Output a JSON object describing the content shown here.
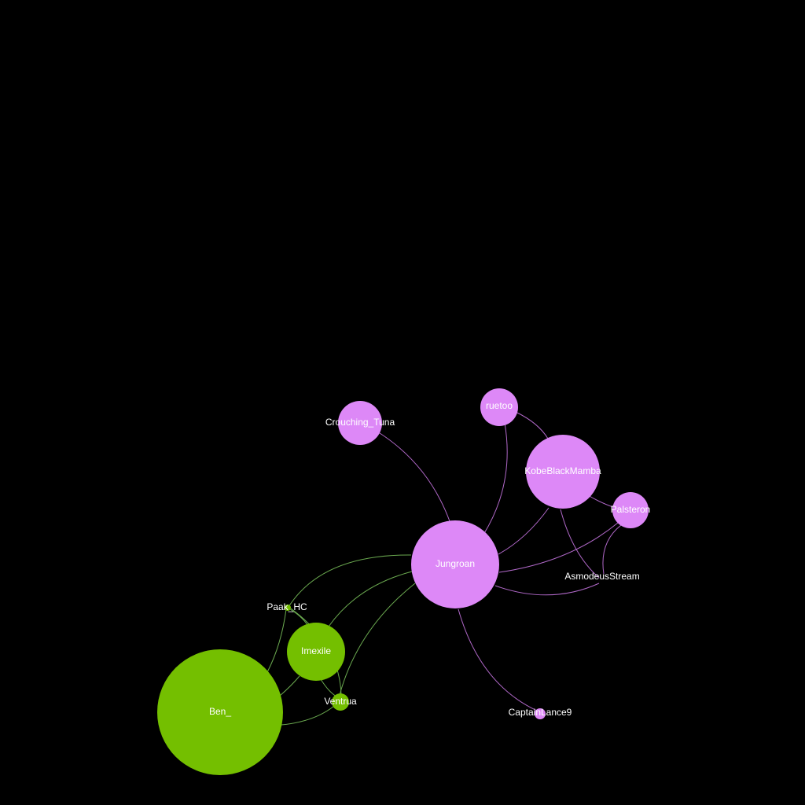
{
  "colors": {
    "background": "#000000",
    "community_green": "#74bf00",
    "community_pink": "#dd88f7",
    "edge_green": "#6aa84f",
    "edge_pink": "#b068c8",
    "label": "#ffffff"
  },
  "nodes": [
    {
      "id": "jungroan",
      "label": "Jungroan",
      "group": "pink"
    },
    {
      "id": "kobe",
      "label": "KobeBlackMamba",
      "group": "pink"
    },
    {
      "id": "ruetoo",
      "label": "ruetoo",
      "group": "pink"
    },
    {
      "id": "crouching",
      "label": "Crouching_Tuna",
      "group": "pink"
    },
    {
      "id": "palsteron",
      "label": "Palsteron",
      "group": "pink"
    },
    {
      "id": "asmodeus",
      "label": "AsmodeusStream",
      "group": "pink"
    },
    {
      "id": "captain",
      "label": "CaptainLance9",
      "group": "pink"
    },
    {
      "id": "ben",
      "label": "Ben_",
      "group": "green"
    },
    {
      "id": "imexile",
      "label": "Imexile",
      "group": "green"
    },
    {
      "id": "ventrua",
      "label": "Ventrua",
      "group": "green"
    },
    {
      "id": "paak",
      "label": "Paak_HC",
      "group": "green"
    }
  ],
  "edges": [
    {
      "source": "crouching",
      "target": "jungroan",
      "group": "pink"
    },
    {
      "source": "ruetoo",
      "target": "jungroan",
      "group": "pink"
    },
    {
      "source": "ruetoo",
      "target": "kobe",
      "group": "pink"
    },
    {
      "source": "kobe",
      "target": "jungroan",
      "group": "pink"
    },
    {
      "source": "kobe",
      "target": "palsteron",
      "group": "pink"
    },
    {
      "source": "kobe",
      "target": "asmodeus",
      "group": "pink"
    },
    {
      "source": "palsteron",
      "target": "jungroan",
      "group": "pink"
    },
    {
      "source": "palsteron",
      "target": "asmodeus",
      "group": "pink"
    },
    {
      "source": "asmodeus",
      "target": "jungroan",
      "group": "pink"
    },
    {
      "source": "jungroan",
      "target": "captain",
      "group": "pink"
    },
    {
      "source": "jungroan",
      "target": "paak",
      "group": "green"
    },
    {
      "source": "jungroan",
      "target": "imexile",
      "group": "green"
    },
    {
      "source": "jungroan",
      "target": "ventrua",
      "group": "green"
    },
    {
      "source": "paak",
      "target": "ben",
      "group": "green"
    },
    {
      "source": "paak",
      "target": "imexile",
      "group": "green"
    },
    {
      "source": "imexile",
      "target": "ben",
      "group": "green"
    },
    {
      "source": "imexile",
      "target": "ventrua",
      "group": "green"
    },
    {
      "source": "ventrua",
      "target": "ben",
      "group": "green"
    },
    {
      "source": "paak",
      "target": "ventrua",
      "group": "green"
    }
  ]
}
